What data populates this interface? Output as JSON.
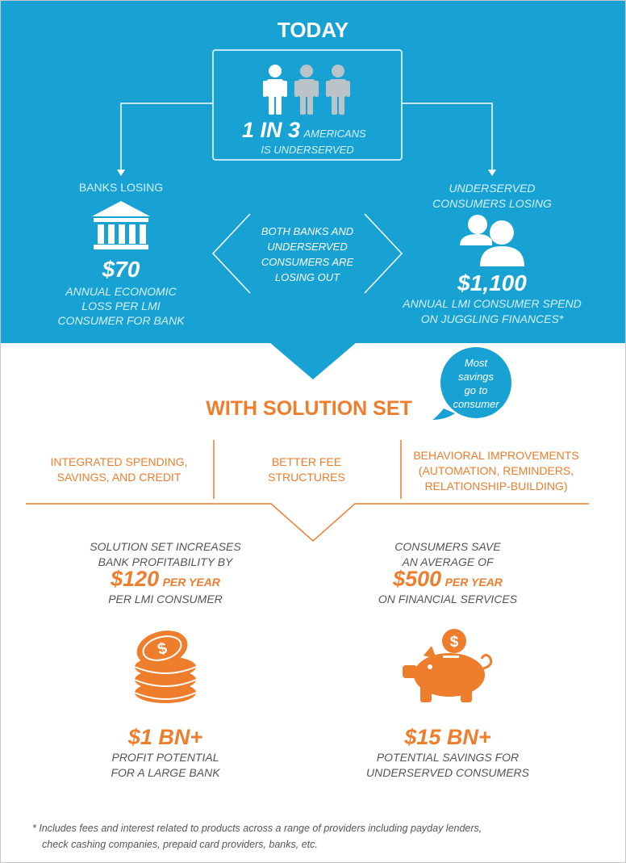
{
  "today": {
    "title": "TODAY",
    "stat_big": "1 IN 3",
    "stat_small_1": "AMERICANS",
    "stat_small_2": "IS UNDERSERVED"
  },
  "banks": {
    "heading": "BANKS LOSING",
    "value": "$70",
    "desc_1": "ANNUAL ECONOMIC",
    "desc_2": "LOSS PER LMI",
    "desc_3": "CONSUMER FOR BANK"
  },
  "consumers": {
    "heading_1": "UNDERSERVED",
    "heading_2": "CONSUMERS LOSING",
    "value": "$1,100",
    "desc_1": "ANNUAL LMI CONSUMER SPEND",
    "desc_2": "ON JUGGLING FINANCES*"
  },
  "middle": {
    "line_1": "BOTH BANKS AND",
    "line_2": "UNDERSERVED",
    "line_3": "CONSUMERS ARE",
    "line_4": "LOSING OUT"
  },
  "bubble": {
    "line_1": "Most",
    "line_2": "savings",
    "line_3": "go to",
    "line_4": "consumer"
  },
  "solution": {
    "title": "WITH SOLUTION SET",
    "col1_1": "INTEGRATED SPENDING,",
    "col1_2": "SAVINGS, AND CREDIT",
    "col2_1": "BETTER FEE",
    "col2_2": "STRUCTURES",
    "col3_1": "BEHAVIORAL IMPROVEMENTS",
    "col3_2": "(AUTOMATION, REMINDERS,",
    "col3_3": "RELATIONSHIP-BUILDING)"
  },
  "bank_result": {
    "line_1": "SOLUTION SET INCREASES",
    "line_2": "BANK PROFITABILITY BY",
    "value": "$120",
    "unit": "PER YEAR",
    "line_3": "PER LMI CONSUMER",
    "big": "$1 BN+",
    "big_desc_1": "PROFIT POTENTIAL",
    "big_desc_2": "FOR A LARGE BANK"
  },
  "consumer_result": {
    "line_1": "CONSUMERS SAVE",
    "line_2": "AN AVERAGE OF",
    "value": "$500",
    "unit": "PER YEAR",
    "line_3": "ON FINANCIAL SERVICES",
    "big": "$15 BN+",
    "big_desc_1": "POTENTIAL SAVINGS FOR",
    "big_desc_2": "UNDERSERVED CONSUMERS"
  },
  "footnote": {
    "line_1": "* Includes fees and interest related to products across a range of providers including payday lenders,",
    "line_2": "check cashing companies, prepaid card providers, banks, etc."
  },
  "colors": {
    "blue": "#17a2d3",
    "orange": "#ee7d2c",
    "grey_text": "#555555"
  },
  "icons": [
    "people-icon",
    "bank-icon",
    "consumers-icon",
    "coins-icon",
    "piggy-bank-icon"
  ]
}
